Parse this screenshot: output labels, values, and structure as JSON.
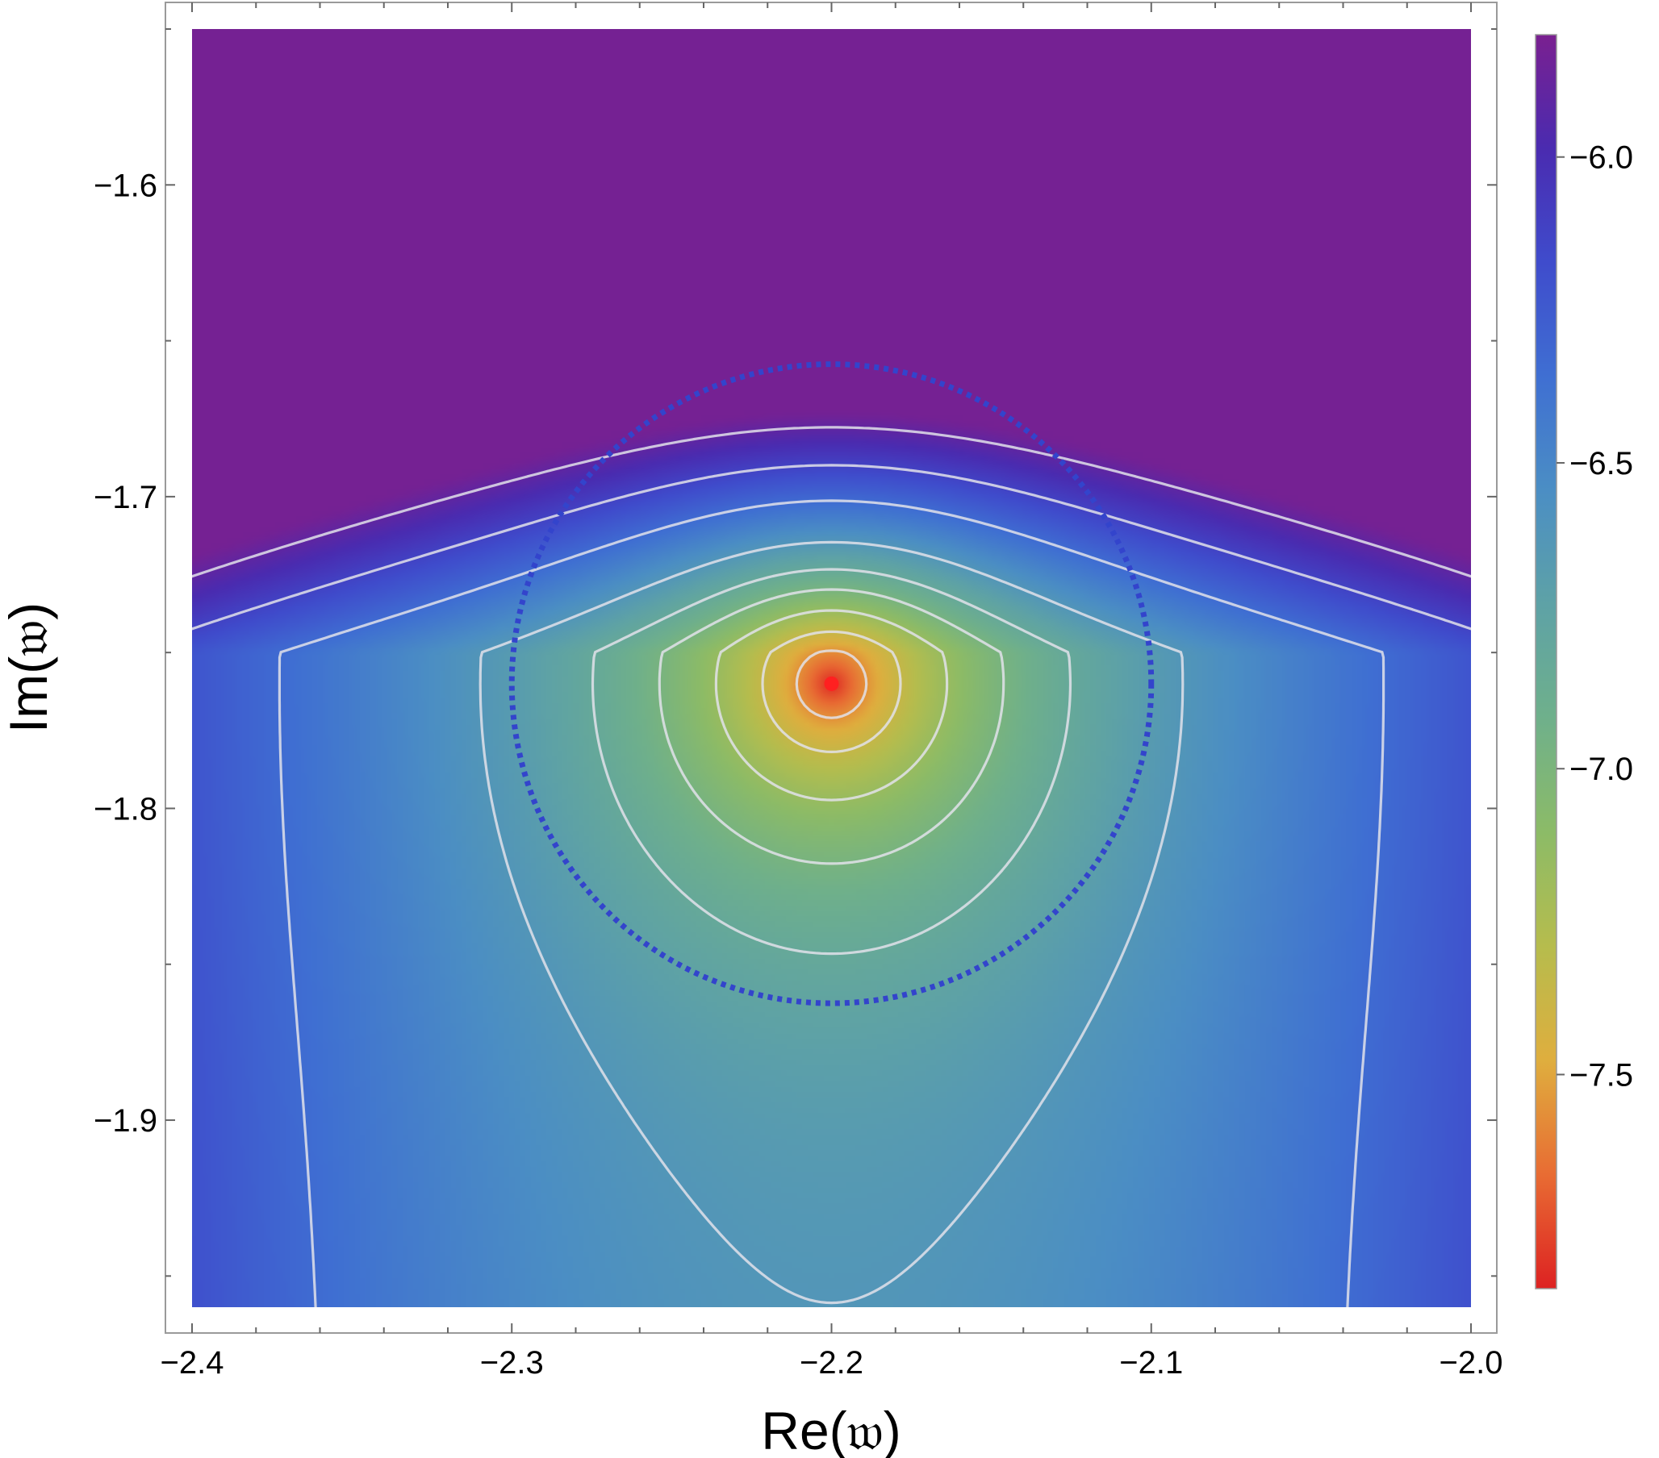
{
  "chart_data": {
    "type": "heatmap",
    "title": "",
    "xlabel": "Re(𝔴)",
    "ylabel": "Im(𝔴)",
    "xlim": [
      -2.4,
      -2.0
    ],
    "ylim": [
      -1.96,
      -1.55
    ],
    "x_ticks": [
      -2.4,
      -2.3,
      -2.2,
      -2.1,
      -2.0
    ],
    "x_tick_labels": [
      "−2.4",
      "−2.3",
      "−2.2",
      "−2.1",
      "−2.0"
    ],
    "y_ticks": [
      -1.6,
      -1.7,
      -1.8,
      -1.9
    ],
    "y_tick_labels": [
      "−1.6",
      "−1.7",
      "−1.8",
      "−1.9"
    ],
    "grid": false,
    "colorbar": {
      "range": [
        -7.85,
        -5.8
      ],
      "ticks": [
        -6.0,
        -6.5,
        -7.0,
        -7.5
      ],
      "tick_labels": [
        "−6.0",
        "−6.5",
        "−7.0",
        "−7.5"
      ],
      "colormap": [
        "#dd2222",
        "#e86c33",
        "#dfae3e",
        "#b6bc4d",
        "#8cbb67",
        "#6fb08b",
        "#5ea2a6",
        "#4b8ec4",
        "#3f6fd2",
        "#3f4ccc",
        "#4a2bb0",
        "#7a2090"
      ],
      "placement": "right"
    },
    "field": {
      "center": [
        -2.2,
        -1.76
      ],
      "min_value": -7.85,
      "plateau_value": -6.74,
      "top_value": -5.82
    },
    "contour_levels": [
      -5.9,
      -6.12,
      -6.34,
      -6.62,
      -6.82,
      -6.98,
      -7.16,
      -7.36,
      -7.56
    ],
    "contour_color": "#e2e2ea",
    "dotted_circle": {
      "center": [
        -2.2,
        -1.76
      ],
      "radius": 0.1,
      "color": "#3344cc"
    },
    "marked_point": {
      "x": -2.2,
      "y": -1.76,
      "color": "#ff2020"
    }
  }
}
